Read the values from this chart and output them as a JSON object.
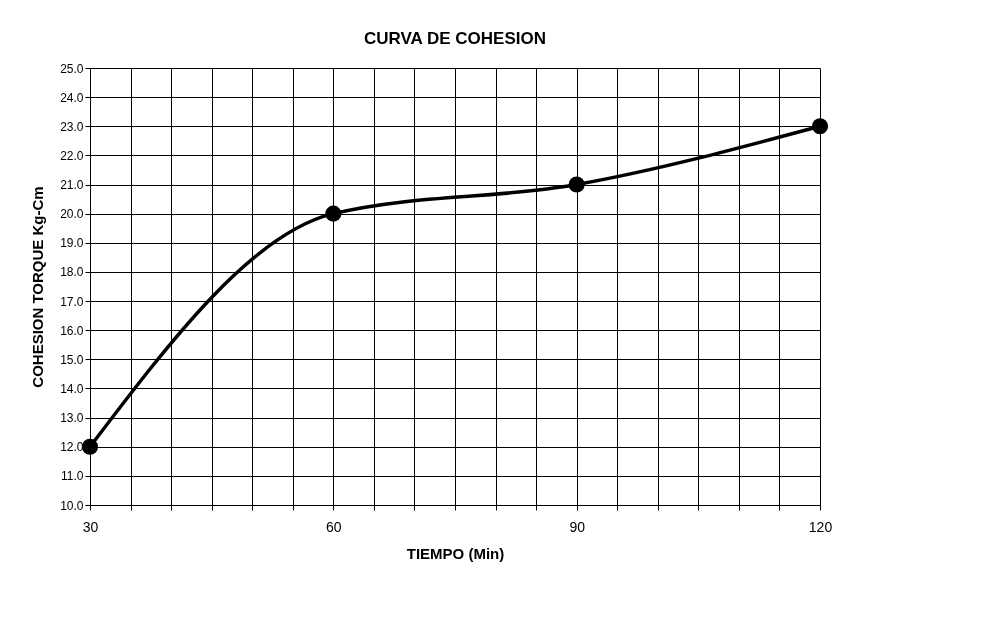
{
  "chart_data": {
    "type": "line",
    "title": "CURVA DE COHESION",
    "xlabel": "TIEMPO (Min)",
    "ylabel": "COHESION TORQUE Kg-Cm",
    "x": [
      30,
      60,
      90,
      120
    ],
    "series": [
      {
        "color": "#000000",
        "values": [
          12,
          20,
          21,
          23
        ]
      }
    ],
    "xlim": [
      30,
      120
    ],
    "xticks": [
      30,
      {
        "value": 35,
        "label": null
      },
      {
        "value": 40,
        "label": null
      },
      {
        "value": 45,
        "label": null
      },
      {
        "value": 50,
        "label": null
      },
      {
        "value": 55,
        "label": null
      },
      60,
      {
        "value": 65,
        "label": null
      },
      {
        "value": 70,
        "label": null
      },
      {
        "value": 75,
        "label": null
      },
      {
        "value": 80,
        "label": null
      },
      {
        "value": 85,
        "label": null
      },
      90,
      {
        "value": 95,
        "label": null
      },
      {
        "value": 100,
        "label": null
      },
      {
        "value": 105,
        "label": null
      },
      {
        "value": 110,
        "label": null
      },
      {
        "value": 115,
        "label": null
      },
      120
    ],
    "ylim": [
      10,
      25
    ],
    "yticks": [
      {
        "value": 10,
        "label": "10.0"
      },
      {
        "value": 11,
        "label": "11.0"
      },
      {
        "value": 12,
        "label": "12.0"
      },
      {
        "value": 13,
        "label": "13.0"
      },
      {
        "value": 14,
        "label": "14.0"
      },
      {
        "value": 15,
        "label": "15.0"
      },
      {
        "value": 16,
        "label": "16.0"
      },
      {
        "value": 17,
        "label": "17.0"
      },
      {
        "value": 18,
        "label": "18.0"
      },
      {
        "value": 19,
        "label": "19.0"
      },
      {
        "value": 20,
        "label": "20.0"
      },
      {
        "value": 21,
        "label": "21.0"
      },
      {
        "value": 22,
        "label": "22.0"
      },
      {
        "value": 23,
        "label": "23.0"
      },
      {
        "value": 24,
        "label": "24.0"
      },
      {
        "value": 25,
        "label": "25.0"
      }
    ],
    "grid": true,
    "marker": "circle",
    "line_style": "solid"
  }
}
